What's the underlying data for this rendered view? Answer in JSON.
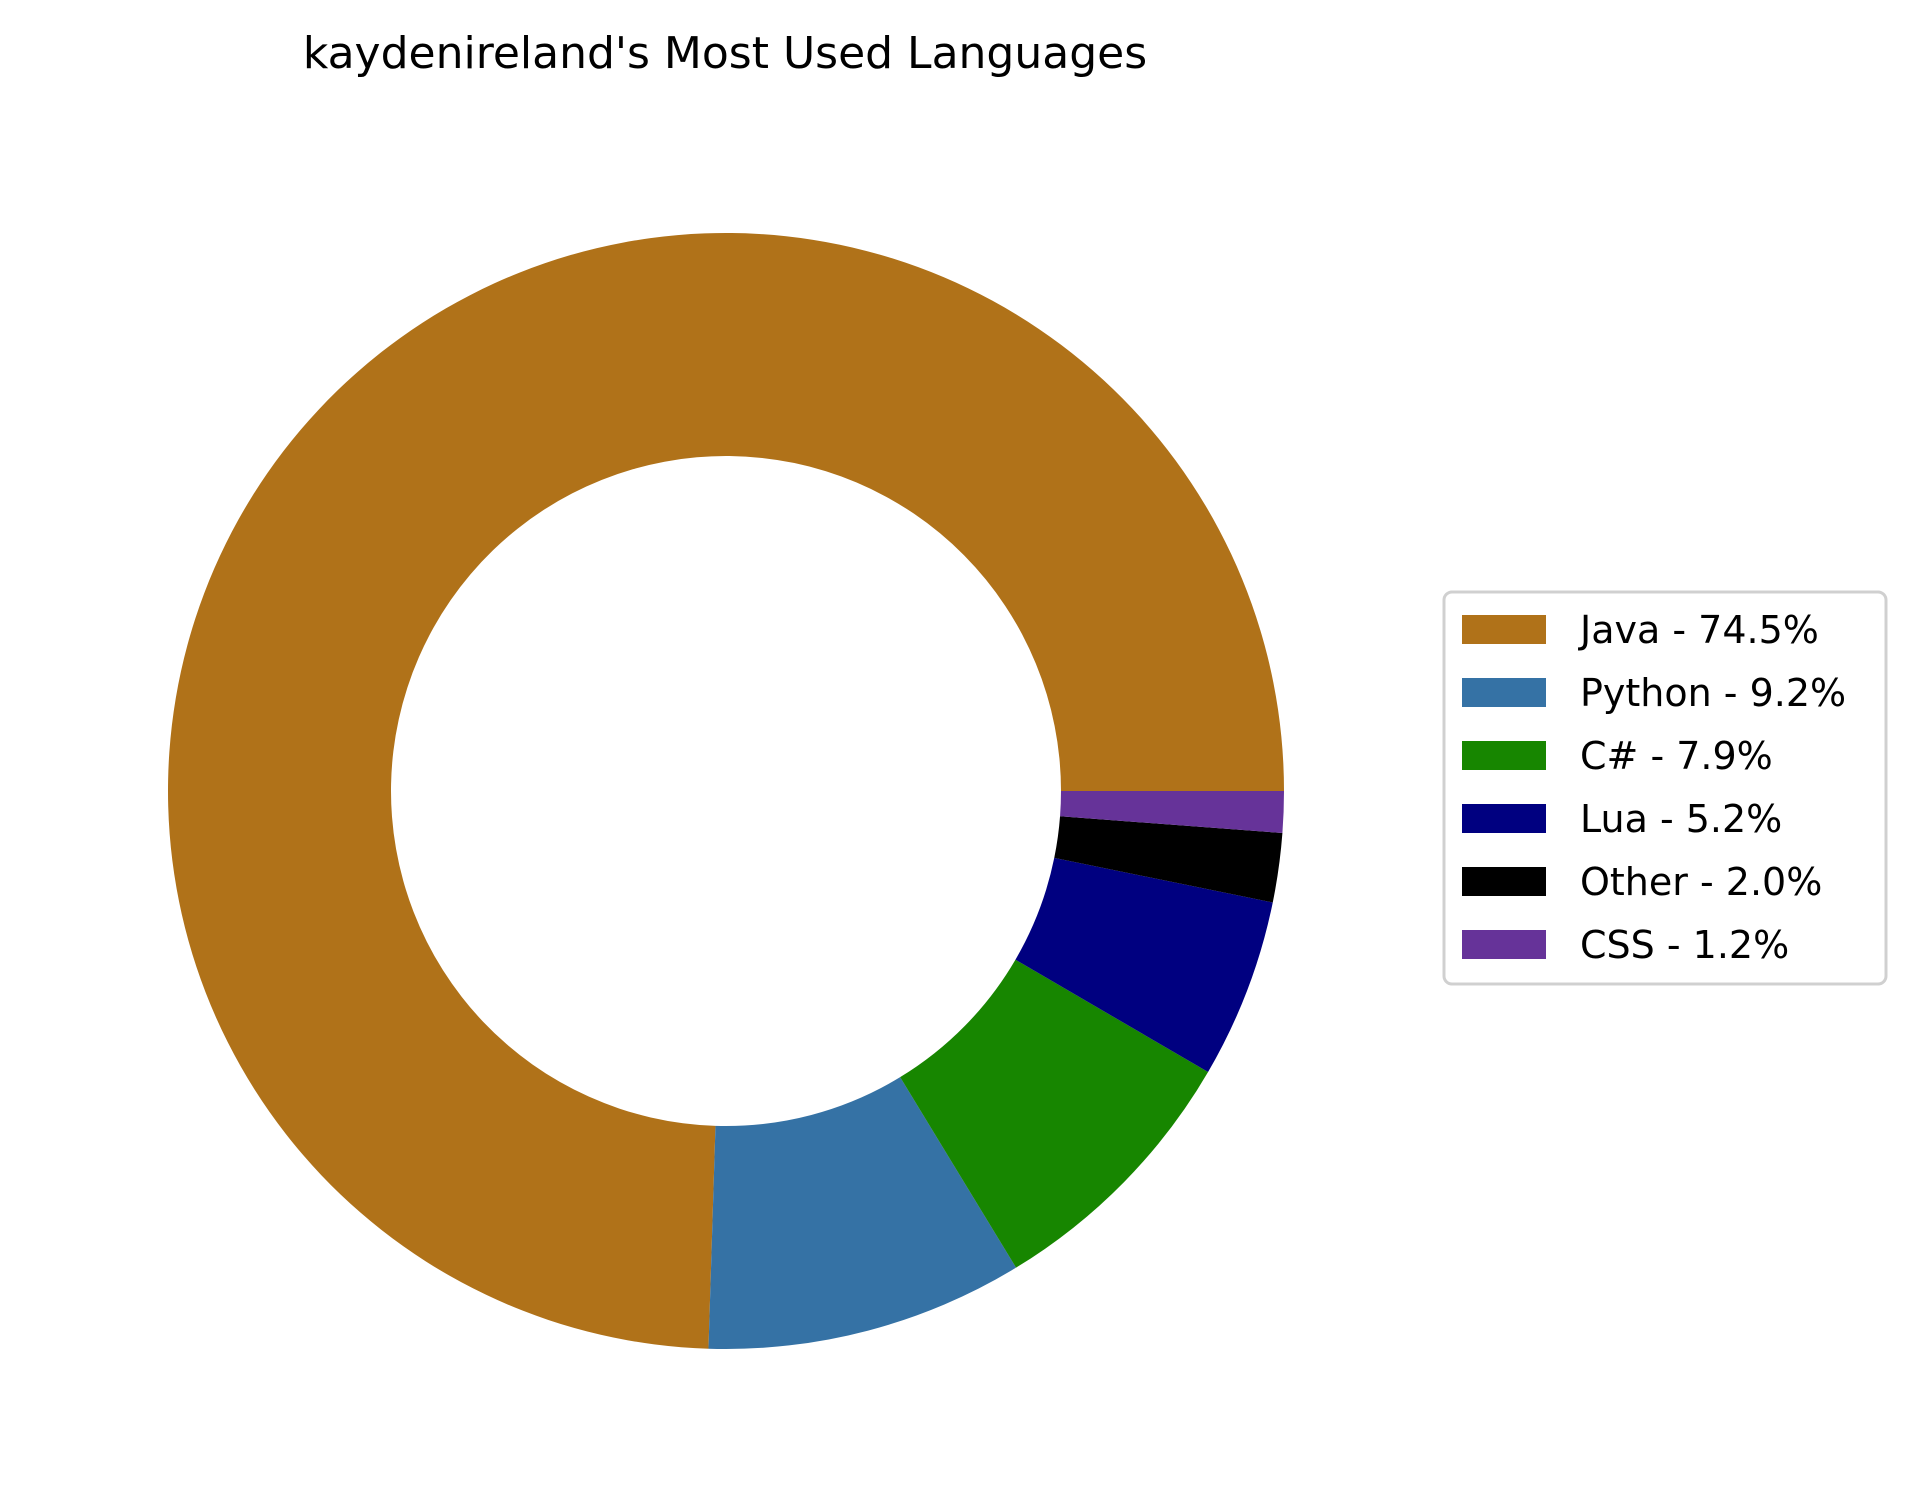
{
  "chart_data": {
    "type": "pie",
    "style": "donut",
    "title": "kaydenireland's Most Used Languages",
    "legend_position": "right",
    "slices": [
      {
        "label": "Java - 74.5%",
        "name": "Java",
        "value": 74.5,
        "color": "#b07219"
      },
      {
        "label": "Python - 9.2%",
        "name": "Python",
        "value": 9.2,
        "color": "#3572a5"
      },
      {
        "label": "C# - 7.9%",
        "name": "C#",
        "value": 7.9,
        "color": "#178600"
      },
      {
        "label": "Lua - 5.2%",
        "name": "Lua",
        "value": 5.2,
        "color": "#000080"
      },
      {
        "label": "Other - 2.0%",
        "name": "Other",
        "value": 2.0,
        "color": "#000000"
      },
      {
        "label": "CSS - 1.2%",
        "name": "CSS",
        "value": 1.2,
        "color": "#663399"
      }
    ]
  }
}
